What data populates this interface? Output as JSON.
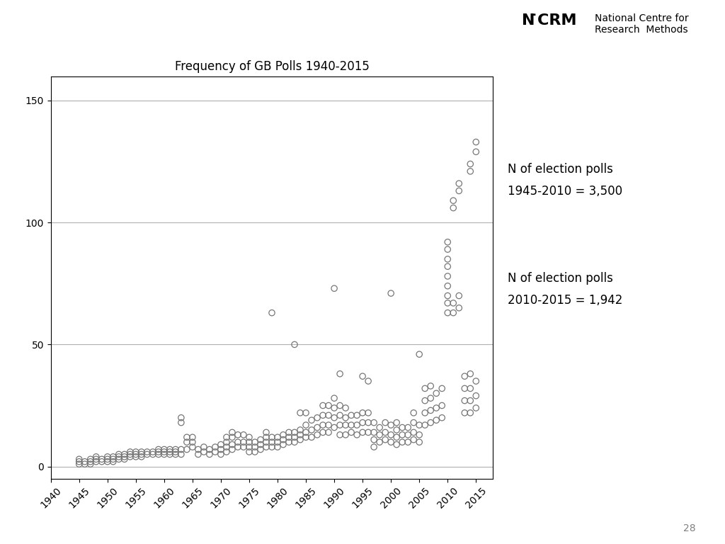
{
  "chart_data": {
    "type": "scatter",
    "title": "Frequency of GB Polls 1940-2015",
    "annotations": [
      "N of election polls",
      "1945-2010 = 3,500",
      "N of election polls",
      "2010-2015 = 1,942",
      "28",
      "N",
      "̇CRM",
      "National Centre for\nResearch  Methods"
    ],
    "color": "#777777",
    "marker": "o",
    "grid": "y",
    "xlim": [
      1940,
      2018
    ],
    "ylim": [
      -5,
      160
    ],
    "xticks": [
      1940,
      1945,
      1950,
      1955,
      1960,
      1965,
      1970,
      1975,
      1980,
      1985,
      1990,
      1995,
      2000,
      2005,
      2010,
      2015
    ],
    "yticks": [
      0,
      50,
      100,
      150
    ],
    "x": [
      1945,
      1945,
      1945,
      1946,
      1946,
      1947,
      1947,
      1947,
      1948,
      1948,
      1948,
      1949,
      1949,
      1950,
      1950,
      1950,
      1951,
      1951,
      1951,
      1952,
      1952,
      1952,
      1953,
      1953,
      1953,
      1954,
      1954,
      1954,
      1955,
      1955,
      1955,
      1956,
      1956,
      1956,
      1957,
      1957,
      1958,
      1958,
      1959,
      1959,
      1959,
      1960,
      1960,
      1960,
      1961,
      1961,
      1961,
      1962,
      1962,
      1962,
      1963,
      1963,
      1963,
      1963,
      1964,
      1964,
      1964,
      1965,
      1965,
      1965,
      1966,
      1966,
      1967,
      1967,
      1968,
      1968,
      1969,
      1969,
      1970,
      1970,
      1970,
      1971,
      1971,
      1971,
      1971,
      1972,
      1972,
      1972,
      1972,
      1973,
      1973,
      1973,
      1974,
      1974,
      1974,
      1975,
      1975,
      1975,
      1975,
      1976,
      1976,
      1976,
      1977,
      1977,
      1977,
      1978,
      1978,
      1978,
      1978,
      1979,
      1979,
      1979,
      1979,
      1980,
      1980,
      1980,
      1981,
      1981,
      1981,
      1982,
      1982,
      1982,
      1983,
      1983,
      1983,
      1983,
      1984,
      1984,
      1984,
      1984,
      1985,
      1985,
      1985,
      1985,
      1986,
      1986,
      1986,
      1987,
      1987,
      1987,
      1988,
      1988,
      1988,
      1988,
      1989,
      1989,
      1989,
      1989,
      1990,
      1990,
      1990,
      1990,
      1990,
      1991,
      1991,
      1991,
      1991,
      1991,
      1992,
      1992,
      1992,
      1992,
      1993,
      1993,
      1993,
      1994,
      1994,
      1994,
      1995,
      1995,
      1995,
      1995,
      1996,
      1996,
      1996,
      1996,
      1997,
      1997,
      1997,
      1997,
      1998,
      1998,
      1998,
      1999,
      1999,
      1999,
      2000,
      2000,
      2000,
      2000,
      2001,
      2001,
      2001,
      2001,
      2002,
      2002,
      2002,
      2003,
      2003,
      2003,
      2004,
      2004,
      2004,
      2004,
      2005,
      2005,
      2005,
      2005,
      2006,
      2006,
      2006,
      2006,
      2007,
      2007,
      2007,
      2007,
      2008,
      2008,
      2008,
      2009,
      2009,
      2009,
      2010,
      2010,
      2010,
      2010,
      2010,
      2010,
      2010,
      2010,
      2010,
      2011,
      2011,
      2011,
      2011,
      2012,
      2012,
      2012,
      2012,
      2013,
      2013,
      2013,
      2013,
      2014,
      2014,
      2014,
      2014,
      2014,
      2014,
      2015,
      2015,
      2015,
      2015,
      2015
    ],
    "values": [
      1,
      2,
      3,
      1,
      2,
      1,
      2,
      3,
      2,
      3,
      4,
      2,
      3,
      2,
      3,
      4,
      2,
      3,
      4,
      3,
      4,
      5,
      3,
      4,
      5,
      4,
      5,
      6,
      4,
      5,
      6,
      4,
      5,
      6,
      5,
      6,
      5,
      6,
      5,
      6,
      7,
      5,
      6,
      7,
      5,
      6,
      7,
      5,
      6,
      7,
      5,
      7,
      18,
      20,
      7,
      10,
      12,
      8,
      10,
      12,
      5,
      7,
      6,
      8,
      5,
      7,
      6,
      8,
      5,
      7,
      9,
      6,
      8,
      10,
      12,
      7,
      9,
      12,
      14,
      8,
      10,
      13,
      8,
      10,
      13,
      6,
      8,
      10,
      12,
      6,
      8,
      10,
      7,
      9,
      11,
      8,
      10,
      12,
      14,
      8,
      10,
      12,
      63,
      8,
      10,
      12,
      9,
      11,
      13,
      10,
      12,
      14,
      10,
      12,
      14,
      50,
      11,
      13,
      15,
      22,
      12,
      14,
      17,
      22,
      12,
      15,
      19,
      13,
      16,
      20,
      14,
      17,
      21,
      25,
      14,
      17,
      21,
      25,
      16,
      20,
      24,
      28,
      73,
      13,
      17,
      21,
      25,
      38,
      13,
      17,
      20,
      24,
      14,
      17,
      21,
      13,
      17,
      21,
      14,
      18,
      22,
      37,
      14,
      18,
      22,
      35,
      8,
      11,
      14,
      18,
      10,
      13,
      16,
      11,
      14,
      18,
      10,
      13,
      17,
      71,
      9,
      12,
      15,
      18,
      10,
      13,
      16,
      10,
      13,
      16,
      11,
      14,
      18,
      22,
      10,
      13,
      17,
      46,
      17,
      22,
      27,
      32,
      18,
      23,
      28,
      33,
      19,
      24,
      30,
      20,
      25,
      32,
      63,
      67,
      70,
      74,
      78,
      82,
      85,
      89,
      92,
      63,
      67,
      106,
      109,
      65,
      70,
      113,
      116,
      22,
      27,
      32,
      37,
      22,
      27,
      32,
      38,
      121,
      124,
      24,
      29,
      35,
      129,
      133
    ]
  }
}
